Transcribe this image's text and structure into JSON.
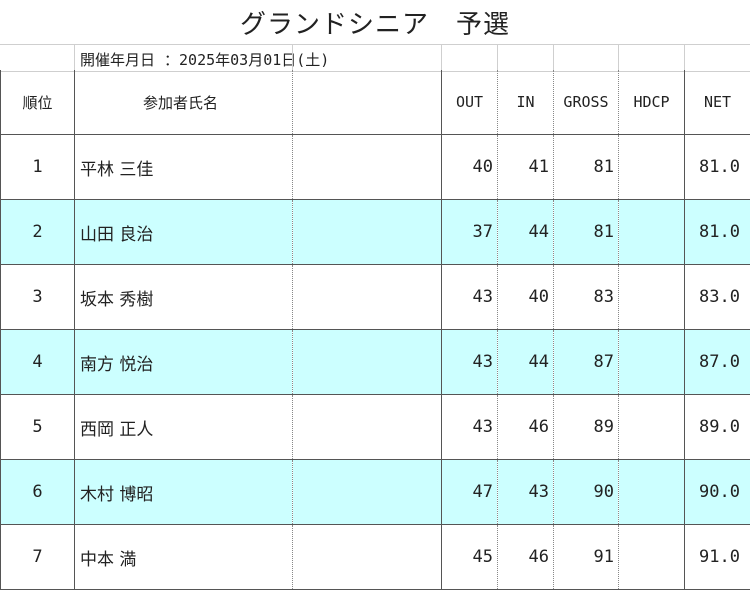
{
  "title": "グランドシニア　予選",
  "date_line": "開催年月日 ：2025年03月01日(土)",
  "headers": {
    "rank": "順位",
    "name": "参加者氏名",
    "out": "OUT",
    "in": "IN",
    "gross": "GROSS",
    "hdcp": "HDCP",
    "net": "NET"
  },
  "rows": [
    {
      "rank": "1",
      "name": "平林 三佳",
      "out": "40",
      "in": "41",
      "gross": "81",
      "hdcp": "",
      "net": "81.0"
    },
    {
      "rank": "2",
      "name": "山田 良治",
      "out": "37",
      "in": "44",
      "gross": "81",
      "hdcp": "",
      "net": "81.0"
    },
    {
      "rank": "3",
      "name": "坂本 秀樹",
      "out": "43",
      "in": "40",
      "gross": "83",
      "hdcp": "",
      "net": "83.0"
    },
    {
      "rank": "4",
      "name": "南方 悦治",
      "out": "43",
      "in": "44",
      "gross": "87",
      "hdcp": "",
      "net": "87.0"
    },
    {
      "rank": "5",
      "name": "西岡 正人",
      "out": "43",
      "in": "46",
      "gross": "89",
      "hdcp": "",
      "net": "89.0"
    },
    {
      "rank": "6",
      "name": "木村 博昭",
      "out": "47",
      "in": "43",
      "gross": "90",
      "hdcp": "",
      "net": "90.0"
    },
    {
      "rank": "7",
      "name": "中本 満",
      "out": "45",
      "in": "46",
      "gross": "91",
      "hdcp": "",
      "net": "91.0"
    }
  ],
  "colors": {
    "alt_row": "#ccffff",
    "border": "#555555"
  }
}
